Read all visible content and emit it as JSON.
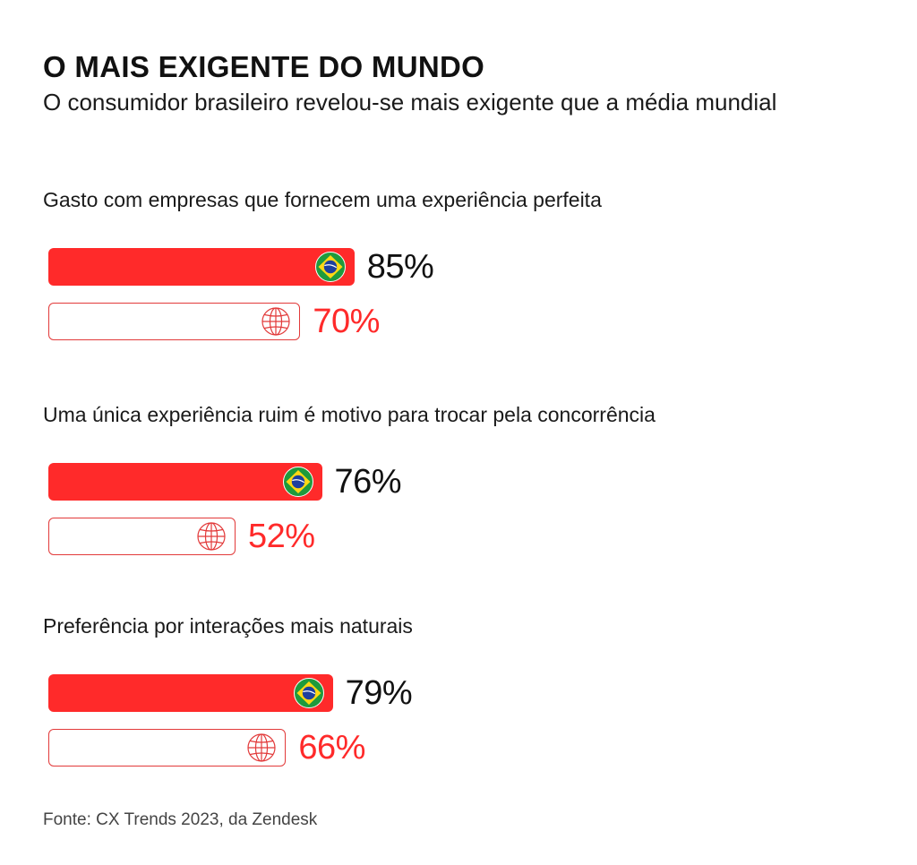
{
  "title": "O MAIS EXIGENTE DO MUNDO",
  "subtitle": "O consumidor brasileiro revelou-se mais exigente que a média mundial",
  "source": "Fonte: CX Trends 2023, da Zendesk",
  "colors": {
    "brasil_bar": "#ff2a2a",
    "mundo_bar_outline": "#e23a3a",
    "mundo_value": "#ff2a2a",
    "brasil_value": "#111111"
  },
  "icons": {
    "brasil": "brazil-flag-icon",
    "mundo": "globe-icon"
  },
  "chart_data": {
    "type": "bar",
    "orientation": "horizontal",
    "grid": false,
    "xlim": [
      0,
      100
    ],
    "unit": "%",
    "categories": [
      "Gasto com empresas que fornecem uma experiência perfeita",
      "Uma única experiência ruim é motivo para trocar pela concorrência",
      "Preferência por interações mais naturais"
    ],
    "series": [
      {
        "key": "brasil",
        "values": [
          85,
          76,
          79
        ],
        "labels": [
          "85%",
          "76%",
          "79%"
        ]
      },
      {
        "key": "mundo",
        "values": [
          70,
          52,
          66
        ],
        "labels": [
          "70%",
          "52%",
          "66%"
        ]
      }
    ]
  }
}
